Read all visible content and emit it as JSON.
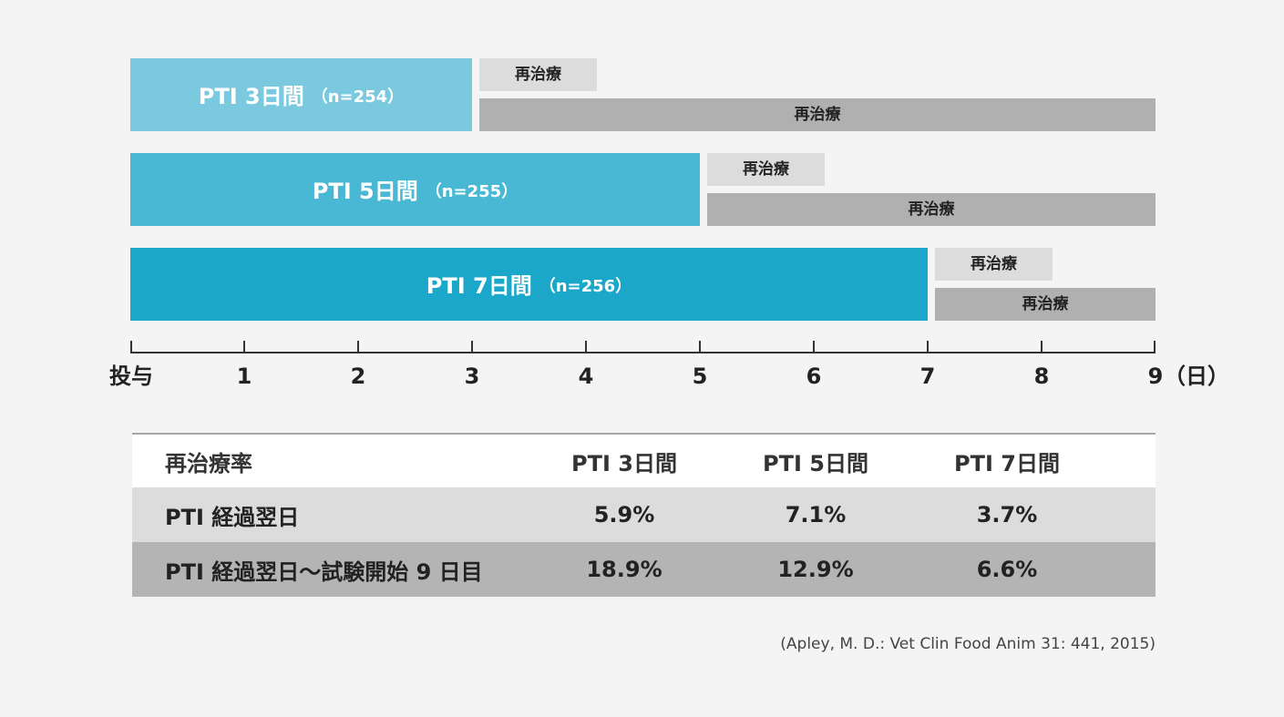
{
  "chart_data": {
    "type": "timeline",
    "bar_colors": [
      "#7ac9de",
      "#48b8d4",
      "#1ba7c9"
    ],
    "retreatment_colors": {
      "short": "#dcdcdc",
      "long": "#b0b0b0"
    },
    "groups": [
      {
        "label": "PTI 3日間",
        "n_label": "（n=254）",
        "start": 0,
        "end": 3,
        "retreatment_short": {
          "label": "再治療",
          "start": 3,
          "end": 4
        },
        "retreatment_long": {
          "label": "再治療",
          "start": 3,
          "end": 9
        }
      },
      {
        "label": "PTI 5日間",
        "n_label": "（n=255）",
        "start": 0,
        "end": 5,
        "retreatment_short": {
          "label": "再治療",
          "start": 5,
          "end": 6
        },
        "retreatment_long": {
          "label": "再治療",
          "start": 5,
          "end": 9
        }
      },
      {
        "label": "PTI 7日間",
        "n_label": "（n=256）",
        "start": 0,
        "end": 7,
        "retreatment_short": {
          "label": "再治療",
          "start": 7,
          "end": 8
        },
        "retreatment_long": {
          "label": "再治療",
          "start": 7,
          "end": 9
        }
      }
    ],
    "xlim": [
      0,
      9
    ],
    "x_ticks": [
      {
        "value": 0,
        "label": "投与"
      },
      {
        "value": 1,
        "label": "1"
      },
      {
        "value": 2,
        "label": "2"
      },
      {
        "value": 3,
        "label": "3"
      },
      {
        "value": 4,
        "label": "4"
      },
      {
        "value": 5,
        "label": "5"
      },
      {
        "value": 6,
        "label": "6"
      },
      {
        "value": 7,
        "label": "7"
      },
      {
        "value": 8,
        "label": "8"
      },
      {
        "value": 9,
        "label": "9"
      }
    ],
    "x_unit": "（日）"
  },
  "table": {
    "header": {
      "label": "再治療率",
      "columns": [
        "PTI 3日間",
        "PTI 5日間",
        "PTI 7日間"
      ]
    },
    "rows": [
      {
        "label": "PTI 経過翌日",
        "values": [
          "5.9%",
          "7.1%",
          "3.7%"
        ]
      },
      {
        "label": "PTI 経過翌日～試験開始 9 日目",
        "values": [
          "18.9%",
          "12.9%",
          "6.6%"
        ]
      }
    ]
  },
  "source": "(Apley, M. D.: Vet Clin Food Anim 31: 441, 2015)"
}
